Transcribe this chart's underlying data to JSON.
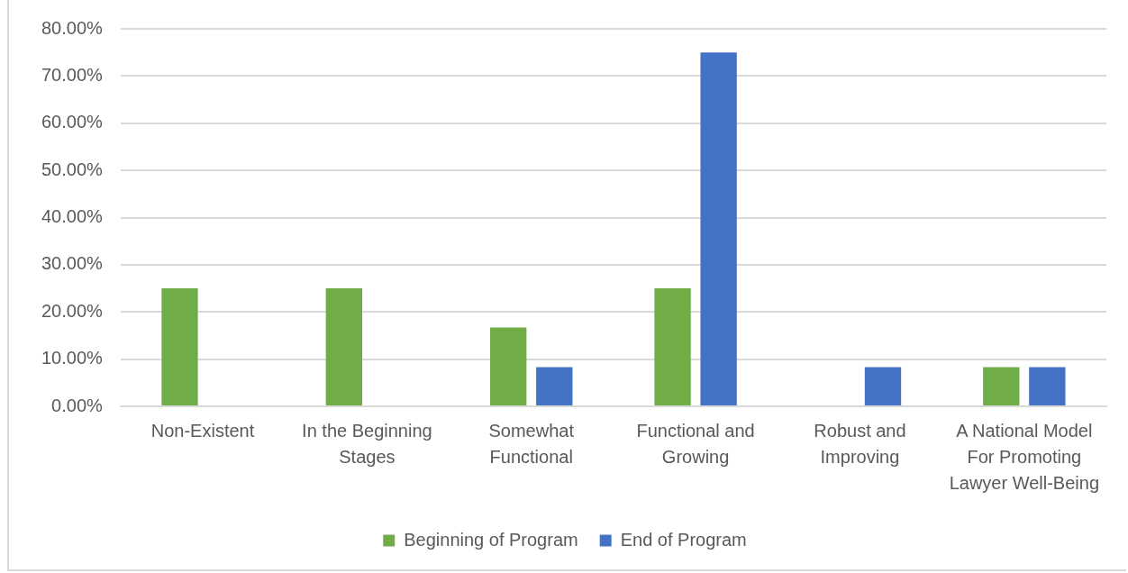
{
  "chart_data": {
    "type": "bar",
    "categories": [
      "Non-Existent",
      "In the Beginning Stages",
      "Somewhat Functional",
      "Functional and Growing",
      "Robust and Improving",
      "A National Model For Promoting Lawyer Well-Being"
    ],
    "series": [
      {
        "name": "Beginning of Program",
        "color": "#70ad47",
        "values": [
          25,
          25,
          16.7,
          25,
          0,
          8.3
        ]
      },
      {
        "name": "End of Program",
        "color": "#4472c4",
        "values": [
          0,
          0,
          8.3,
          75,
          8.3,
          8.3
        ]
      }
    ],
    "ylim": [
      0,
      80
    ],
    "yticks": [
      {
        "value": 0,
        "label": "0.00%"
      },
      {
        "value": 10,
        "label": "10.00%"
      },
      {
        "value": 20,
        "label": "20.00%"
      },
      {
        "value": 30,
        "label": "30.00%"
      },
      {
        "value": 40,
        "label": "40.00%"
      },
      {
        "value": 50,
        "label": "50.00%"
      },
      {
        "value": 60,
        "label": "60.00%"
      },
      {
        "value": 70,
        "label": "70.00%"
      },
      {
        "value": 80,
        "label": "80.00%"
      }
    ],
    "grid": "y",
    "legend": "bottom"
  }
}
